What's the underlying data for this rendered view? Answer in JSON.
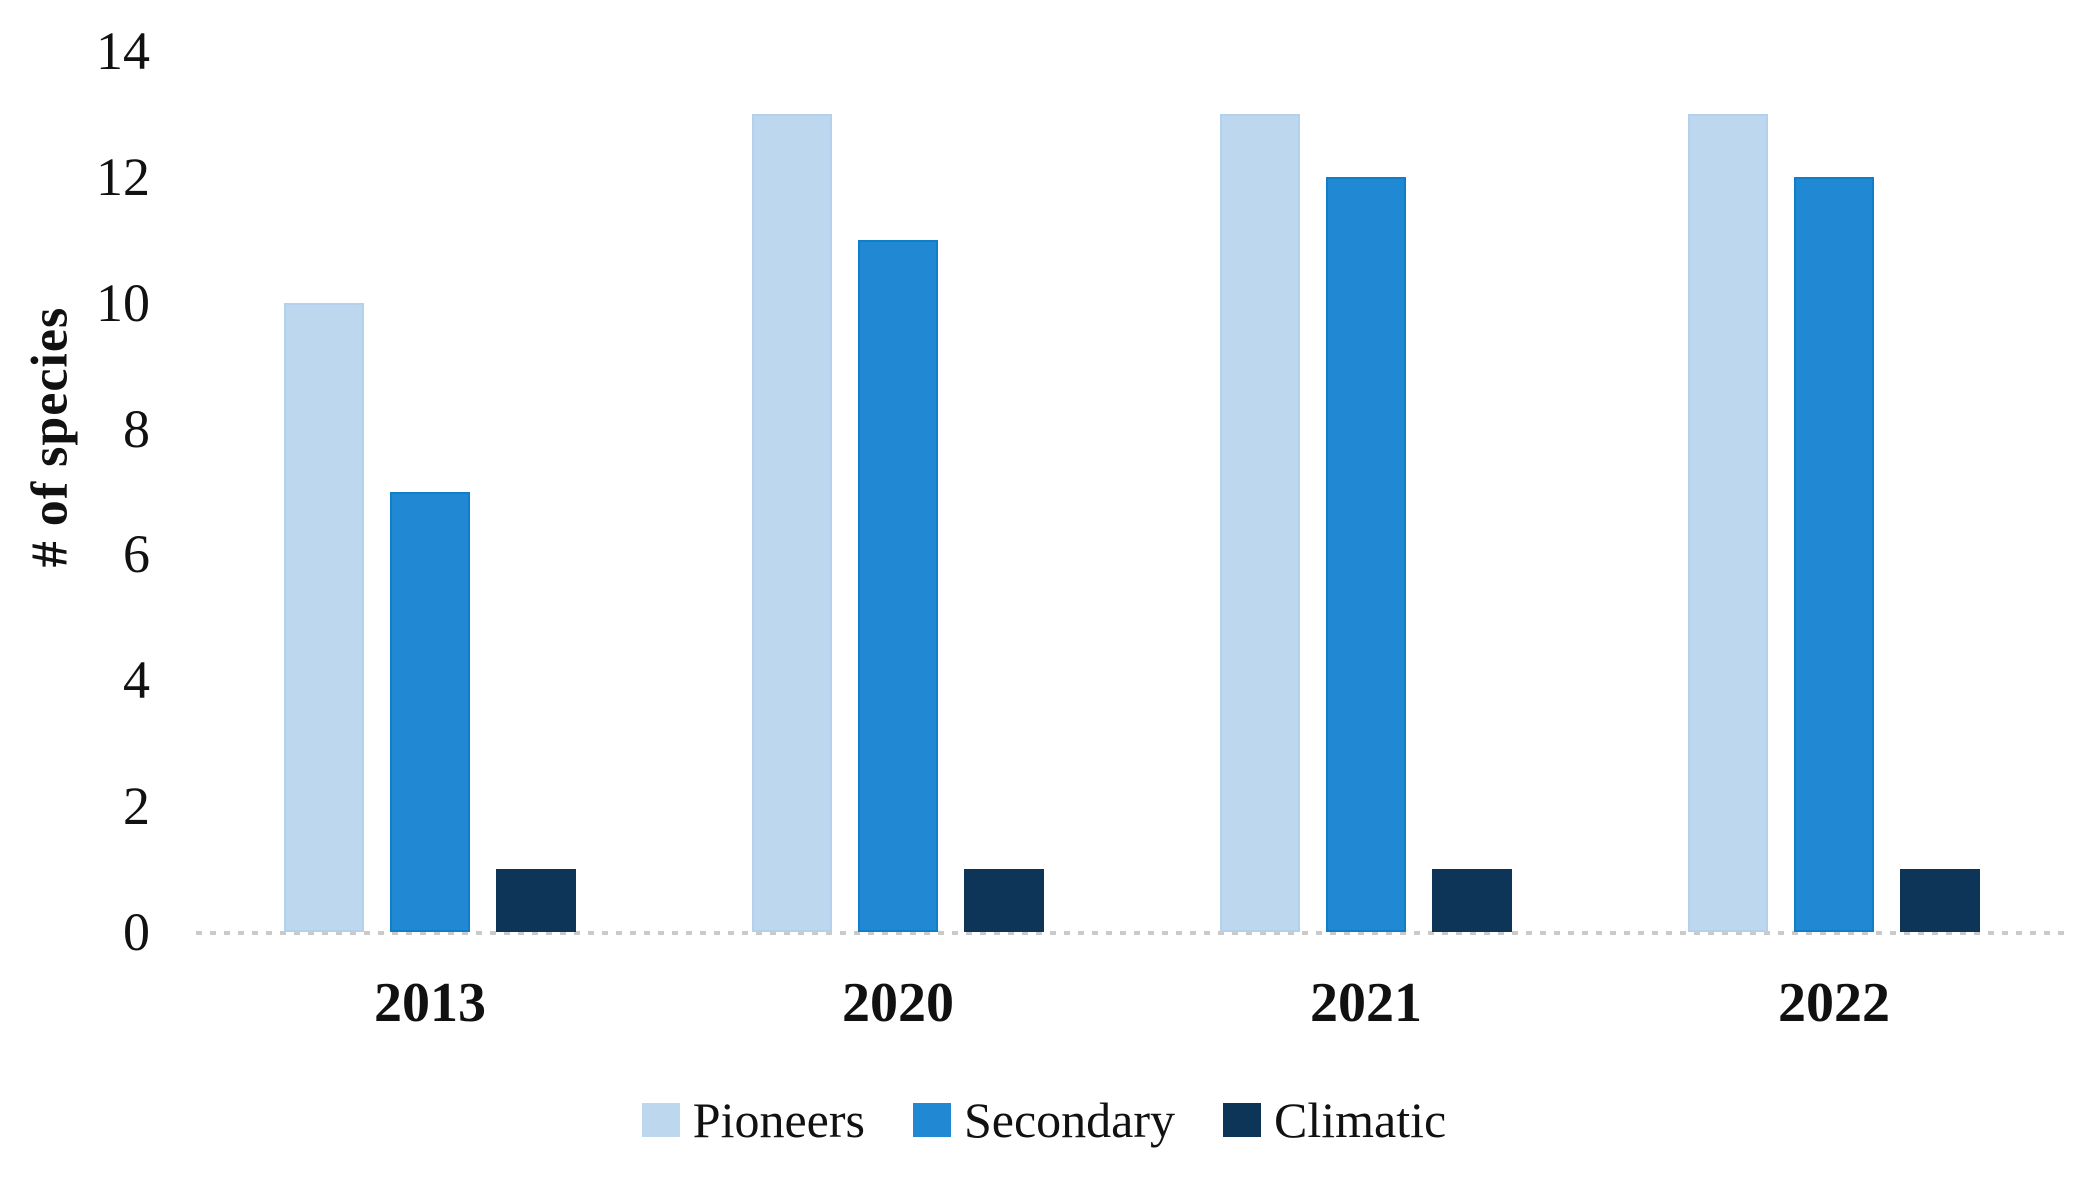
{
  "chart_data": {
    "type": "bar",
    "title": "",
    "xlabel": "",
    "ylabel": "# of species",
    "categories": [
      "2013",
      "2020",
      "2021",
      "2022"
    ],
    "series": [
      {
        "name": "Pioneers",
        "color": "#BDD7EE",
        "border_color": "#B3D1EC",
        "values": [
          10,
          13,
          13,
          13
        ]
      },
      {
        "name": "Secondary",
        "color": "#2189D4",
        "border_color": "#0F7ECB",
        "values": [
          7,
          11,
          12,
          12
        ]
      },
      {
        "name": "Climatic",
        "color": "#0C3557",
        "border_color": "#0C3557",
        "values": [
          1,
          1,
          1,
          1
        ]
      }
    ],
    "ylim": [
      0,
      14
    ],
    "yticks": [
      0,
      2,
      4,
      6,
      8,
      10,
      12,
      14
    ],
    "grid": false,
    "legend_position": "bottom",
    "axis_baseline_style": "dotted",
    "baseline_color": "#CACACA",
    "text_color": "#111111",
    "background_color": "#FFFFFF"
  }
}
